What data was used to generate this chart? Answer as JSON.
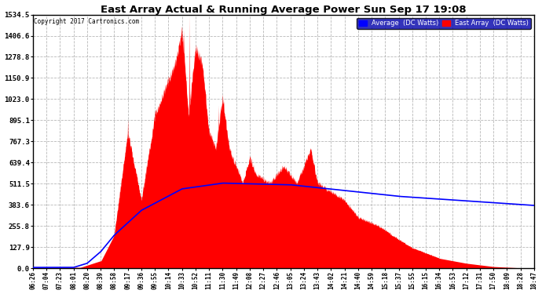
{
  "title": "East Array Actual & Running Average Power Sun Sep 17 19:08",
  "copyright": "Copyright 2017 Cartronics.com",
  "legend_avg": "Average  (DC Watts)",
  "legend_east": "East Array  (DC Watts)",
  "yticks": [
    0.0,
    127.9,
    255.8,
    383.6,
    511.5,
    639.4,
    767.3,
    895.1,
    1023.0,
    1150.9,
    1278.8,
    1406.6,
    1534.5
  ],
  "xtick_labels": [
    "06:26",
    "07:04",
    "07:23",
    "08:01",
    "08:20",
    "08:39",
    "08:58",
    "09:17",
    "09:36",
    "09:55",
    "10:14",
    "10:33",
    "10:52",
    "11:11",
    "11:30",
    "11:49",
    "12:08",
    "12:27",
    "12:46",
    "13:05",
    "13:24",
    "13:43",
    "14:02",
    "14:21",
    "14:40",
    "14:59",
    "15:18",
    "15:37",
    "15:55",
    "16:15",
    "16:34",
    "16:53",
    "17:12",
    "17:31",
    "17:50",
    "18:09",
    "18:28",
    "18:47"
  ],
  "bg_color": "#ffffff",
  "fill_color": "#ff0000",
  "avg_line_color": "#0000ff",
  "axis_bg": "#ffffff",
  "grid_color": "#b0b0b0",
  "legend_bg": "#0000aa",
  "legend_text_color": "#ffffff"
}
